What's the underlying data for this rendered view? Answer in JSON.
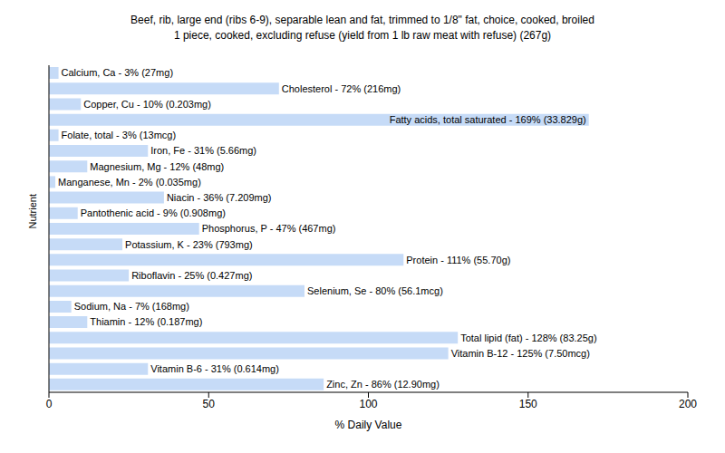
{
  "chart_data": {
    "type": "bar",
    "title": "Beef, rib, large end (ribs 6-9), separable lean and fat, trimmed to 1/8\" fat, choice, cooked, broiled\n1 piece, cooked, excluding refuse (yield from 1 lb raw meat with refuse) (267g)",
    "x_label": "% Daily Value",
    "y_label": "Nutrient",
    "orientation": "horizontal",
    "categories": [
      "Calcium, Ca - 3% (27mg)",
      "Cholesterol - 72% (216mg)",
      "Copper, Cu - 10% (0.203mg)",
      "Fatty acids, total saturated - 169% (33.829g)",
      "Folate, total - 3% (13mcg)",
      "Iron, Fe - 31% (5.66mg)",
      "Magnesium, Mg - 12% (48mg)",
      "Manganese, Mn - 2% (0.035mg)",
      "Niacin - 36% (7.209mg)",
      "Pantothenic acid - 9% (0.908mg)",
      "Phosphorus, P - 47% (467mg)",
      "Potassium, K - 23% (793mg)",
      "Protein - 111% (55.70g)",
      "Riboflavin - 25% (0.427mg)",
      "Selenium, Se - 80% (56.1mcg)",
      "Sodium, Na - 7% (168mg)",
      "Thiamin - 12% (0.187mg)",
      "Total lipid (fat) - 128% (83.25g)",
      "Vitamin B-12 - 125% (7.50mcg)",
      "Vitamin B-6 - 31% (0.614mg)",
      "Zinc, Zn - 86% (12.90mg)"
    ],
    "values": [
      3,
      72,
      10,
      169,
      3,
      31,
      12,
      2,
      36,
      9,
      47,
      23,
      111,
      25,
      80,
      7,
      12,
      128,
      125,
      31,
      86
    ],
    "color": "#c6dbf7",
    "xlim": [
      0,
      200
    ],
    "xticks": [
      0,
      50,
      100,
      150,
      200
    ],
    "grid": false,
    "tick_labels": "x"
  }
}
